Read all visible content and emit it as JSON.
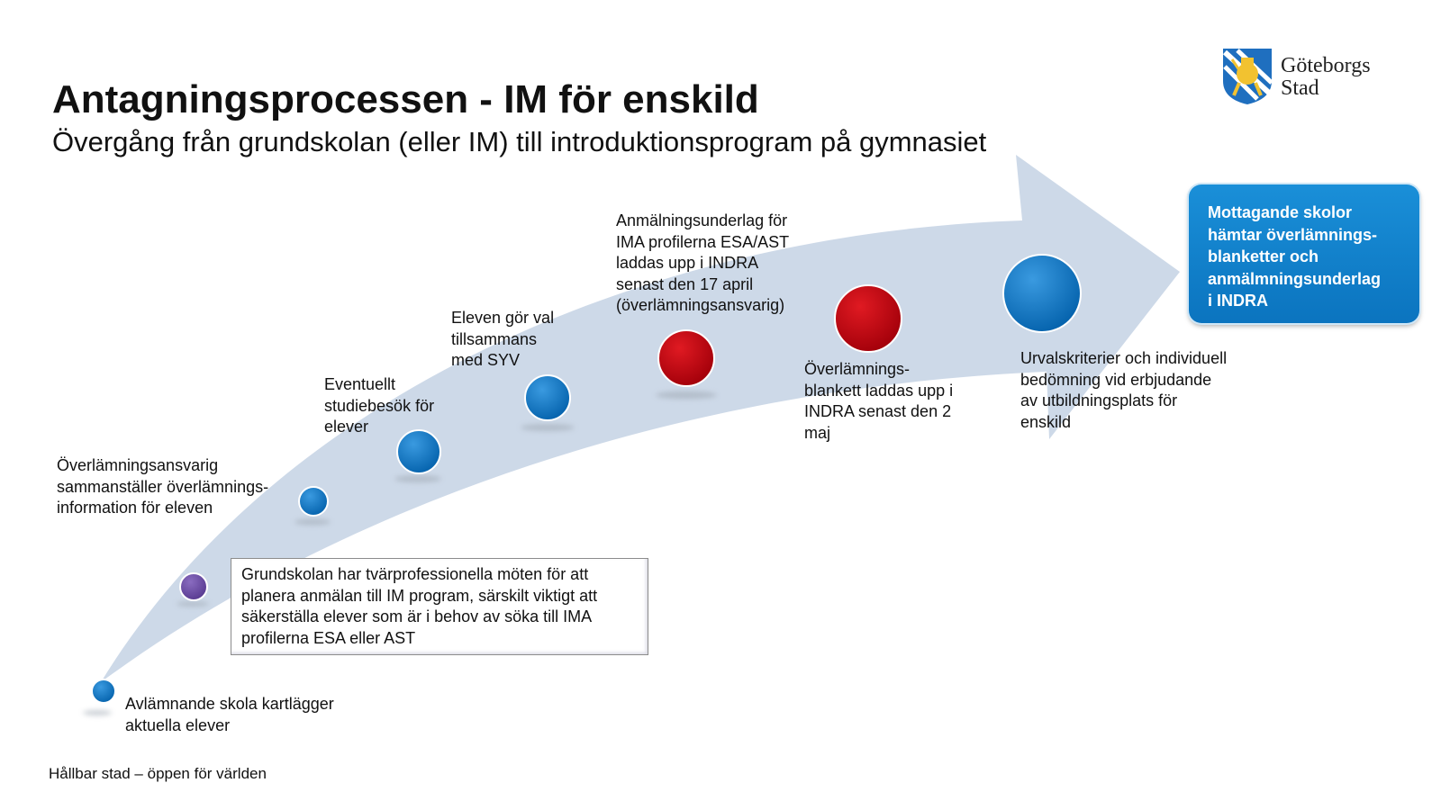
{
  "header": {
    "title": "Antagningsprocessen - IM för enskild",
    "subtitle": "Övergång från grundskolan (eller IM) till introduktionsprogram på gymnasiet"
  },
  "logo": {
    "line1": "Göteborgs",
    "line2": "Stad",
    "icon": "goteborg-coat-of-arms-icon"
  },
  "colors": {
    "arrow": "#cdd9e8",
    "step_blue": "#0a6fbf",
    "step_purple": "#6a4aa0",
    "step_red": "#c0000c",
    "endbox": "#0b7bc6"
  },
  "steps": [
    {
      "color": "blue",
      "lines": [
        "Avlämnande skola kartlägger",
        "aktuella elever"
      ]
    },
    {
      "color": "purple",
      "lines": []
    },
    {
      "color": "blue",
      "lines": [
        "Överlämningsansvarig",
        "sammanställer överlämnings-",
        "information för eleven"
      ]
    },
    {
      "color": "blue",
      "lines": [
        "Eventuellt",
        "studiebesök  för",
        "elever"
      ]
    },
    {
      "color": "blue",
      "lines": [
        "Eleven gör val",
        "tillsammans",
        "med SYV"
      ]
    },
    {
      "color": "red",
      "lines": [
        "Anmälningsunderlag  för",
        "IMA profilerna ESA/AST",
        "laddas upp i INDRA",
        "senast den 17 april",
        "(överlämningsansvarig)"
      ]
    },
    {
      "color": "red",
      "lines": [
        "Överlämnings-",
        "blankett laddas upp i",
        "INDRA senast den 2",
        "maj"
      ]
    },
    {
      "color": "blue",
      "lines": [
        "Urvalskriterier  och individuell",
        "bedömning vid erbjudande",
        "av  utbildningsplats för",
        "enskild"
      ]
    }
  ],
  "callout": {
    "lines": [
      "Grundskolan  har tvärprofessionella  möten för att",
      "planera anmälan till IM program, särskilt viktigt att",
      "säkerställa  elever som är i behov av söka till IMA",
      "profilerna ESA eller AST"
    ]
  },
  "end_box": {
    "lines": [
      "Mottagande skolor",
      "hämtar överlämnings-",
      "blanketter och",
      "anmälmningsunderlag",
      "i INDRA"
    ]
  },
  "footer": {
    "text": "Hållbar stad – öppen för världen"
  }
}
